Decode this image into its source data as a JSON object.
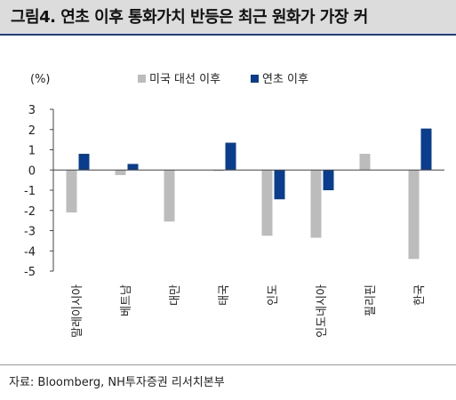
{
  "title": "그림4. 연초 이후 통화가치 반등은 최근 원화가 가장 커",
  "source": "자료: Bloomberg, NH투자증권 리서치본부",
  "colors": {
    "title_bg": "#dcdcdc",
    "title_border": "#1f3f80",
    "series_gray": "#bcbcbc",
    "series_navy": "#0b3d8e"
  },
  "chart_data": {
    "type": "bar",
    "unit_label": "(%)",
    "categories": [
      "말레이시아",
      "베트남",
      "대만",
      "태국",
      "인도",
      "인도네시아",
      "필리핀",
      "한국"
    ],
    "series": [
      {
        "name": "미국 대선 이후",
        "color": "#bcbcbc",
        "values": [
          -2.1,
          -0.25,
          -2.55,
          -0.05,
          -3.25,
          -3.35,
          0.8,
          -4.4
        ]
      },
      {
        "name": "연초 이후",
        "color": "#0b3d8e",
        "values": [
          0.8,
          0.3,
          0.0,
          1.35,
          -1.45,
          -1.0,
          0.0,
          2.05
        ]
      }
    ],
    "ylim": [
      -5,
      3
    ],
    "yticks": [
      3,
      2,
      1,
      0,
      -1,
      -2,
      -3,
      -4,
      -5
    ],
    "legend_position": "top-right",
    "grid": false
  }
}
